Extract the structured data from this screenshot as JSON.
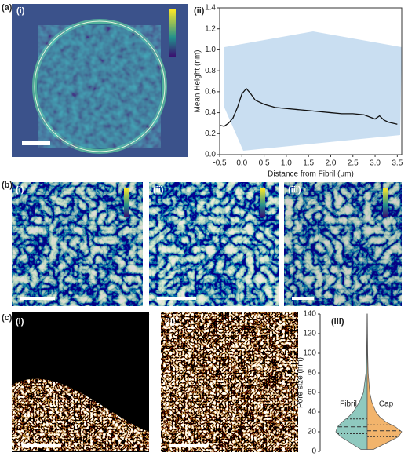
{
  "panels": {
    "a": {
      "label": "(a)",
      "sub": [
        "(i)",
        "(ii)"
      ]
    },
    "b": {
      "label": "(b)",
      "sub": [
        "(i)",
        "(ii)",
        "(iii)"
      ]
    },
    "c": {
      "label": "(c)",
      "sub": [
        "(i)",
        "(ii)",
        "(iii)"
      ]
    }
  },
  "chart_data": [
    {
      "type": "line",
      "x_label": "Distance from Fibril (μm)",
      "y_label": "Mean Height (nm)",
      "x": [
        -0.5,
        -0.4,
        -0.3,
        -0.2,
        -0.1,
        0,
        0.1,
        0.2,
        0.3,
        0.5,
        0.75,
        1.0,
        1.25,
        1.5,
        1.75,
        2.0,
        2.25,
        2.5,
        2.75,
        3.0,
        3.1,
        3.2,
        3.3,
        3.5
      ],
      "series": [
        {
          "color": "#111111",
          "values": [
            0.28,
            0.27,
            0.3,
            0.35,
            0.45,
            0.58,
            0.63,
            0.58,
            0.52,
            0.48,
            0.45,
            0.44,
            0.43,
            0.42,
            0.41,
            0.4,
            0.39,
            0.39,
            0.38,
            0.34,
            0.37,
            0.33,
            0.31,
            0.29
          ]
        }
      ],
      "xlim": [
        -0.5,
        3.6
      ],
      "xticks": [
        -0.5,
        {
          "value": 0,
          "label": "0.0"
        },
        0.5,
        {
          "value": 1,
          "label": "1.0"
        },
        1.5,
        {
          "value": 2,
          "label": "2.0"
        },
        2.5,
        {
          "value": 3,
          "label": "3.0"
        },
        3.5
      ],
      "ylim": [
        0,
        1.4
      ],
      "yticks": [
        {
          "value": 0,
          "label": "0.0"
        },
        0.2,
        0.4,
        0.6,
        0.8,
        {
          "value": 1,
          "label": "1.0"
        },
        1.2,
        1.4
      ]
    },
    {
      "type": "violin",
      "y_label": "Pore size (nm)",
      "ylim": [
        0,
        140
      ],
      "yticks": [
        0,
        20,
        40,
        60,
        80,
        100,
        120,
        140
      ],
      "series": [
        {
          "name": "Fibril",
          "color": "#8fc9bf",
          "side": "left",
          "y": [
            2,
            10,
            15,
            20,
            25,
            30,
            35,
            40,
            50,
            60,
            80,
            100,
            120,
            140
          ],
          "density": [
            0.2,
            0.6,
            0.85,
            1.0,
            0.95,
            0.8,
            0.6,
            0.45,
            0.25,
            0.12,
            0.04,
            0.02,
            0.01,
            0.005
          ],
          "q1": 18,
          "median": 25,
          "q3": 33
        },
        {
          "name": "Cap",
          "color": "#f2b46c",
          "side": "right",
          "y": [
            2,
            10,
            15,
            20,
            25,
            30,
            35,
            40,
            50,
            60,
            80,
            100,
            120,
            140
          ],
          "density": [
            0.2,
            0.7,
            1.0,
            1.1,
            0.9,
            0.6,
            0.4,
            0.28,
            0.15,
            0.08,
            0.03,
            0.015,
            0.01,
            0.005
          ],
          "q1": 15,
          "median": 21,
          "q3": 27
        }
      ]
    }
  ]
}
